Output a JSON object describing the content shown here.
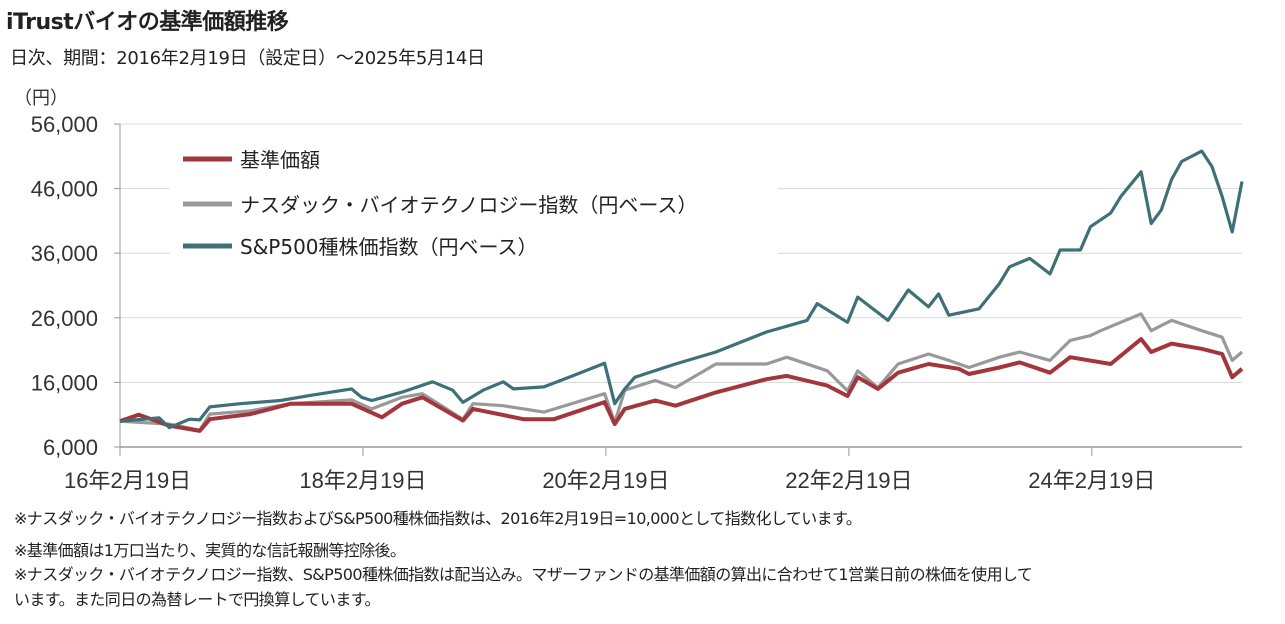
{
  "header": {
    "title": "iTrustバイオの基準価額推移",
    "subtitle": "日次、期間：2016年2月19日（設定日）～2025年5月14日"
  },
  "notes": [
    "※ナスダック・バイオテクノロジー指数およびS&P500種株価指数は、2016年2月19日=10,000として指数化しています。",
    "※基準価額は1万口当たり、実質的な信託報酬等控除後。",
    "※ナスダック・バイオテクノロジー指数、S&P500種株価指数は配当込み。マザーファンドの基準価額の算出に合わせて1営業日前の株価を使用して",
    "います。また同日の為替レートで円換算しています。"
  ],
  "chart_data": {
    "type": "line",
    "title": "iTrustバイオの基準価額推移",
    "ylabel": "（円）",
    "xlabel": "",
    "ylim": [
      6000,
      56000
    ],
    "yticks": [
      "56,000",
      "46,000",
      "36,000",
      "26,000",
      "16,000",
      "6,000"
    ],
    "ytick_values": [
      56000,
      46000,
      36000,
      26000,
      16000,
      6000
    ],
    "xticks": [
      "16年2月19日",
      "18年2月19日",
      "20年2月19日",
      "22年2月19日",
      "24年2月19日"
    ],
    "xtick_dates": [
      "2016-02-19",
      "2018-02-19",
      "2020-02-19",
      "2022-02-19",
      "2024-02-19"
    ],
    "xlim": [
      "2016-02-19",
      "2025-05-14"
    ],
    "grid": "horizontal",
    "legend_position": "top-left",
    "series": [
      {
        "name": "基準価額",
        "color": "#a3363c",
        "x": [
          "2016-02-19",
          "2016-04",
          "2016-07",
          "2016-10",
          "2016-11",
          "2017-03",
          "2017-07",
          "2018-01",
          "2018-04",
          "2018-06",
          "2018-08",
          "2018-12",
          "2019-01",
          "2019-06",
          "2019-09",
          "2020-02",
          "2020-03",
          "2020-04",
          "2020-07",
          "2020-09",
          "2021-01",
          "2021-06",
          "2021-08",
          "2021-12",
          "2022-02",
          "2022-03",
          "2022-05",
          "2022-07",
          "2022-10",
          "2023-01",
          "2023-02",
          "2023-05",
          "2023-07",
          "2023-10",
          "2023-12",
          "2024-04",
          "2024-07",
          "2024-08",
          "2024-10",
          "2025-01",
          "2025-03",
          "2025-04",
          "2025-05-14"
        ],
        "y": [
          10000,
          11000,
          9300,
          8500,
          10300,
          11100,
          12700,
          12700,
          10600,
          12700,
          13700,
          10100,
          11900,
          10300,
          10300,
          12950,
          9550,
          11900,
          13200,
          12400,
          14450,
          16500,
          17000,
          15500,
          13900,
          16800,
          15000,
          17500,
          18850,
          18100,
          17300,
          18300,
          19100,
          17500,
          19900,
          18850,
          22700,
          20700,
          22000,
          21200,
          20400,
          16800,
          18100
        ]
      },
      {
        "name": "ナスダック・バイオテクノロジー指数（円ベース）",
        "color": "#999999",
        "x": [
          "2016-02-19",
          "2016-07",
          "2016-10",
          "2016-11",
          "2017-03",
          "2017-07",
          "2018-01",
          "2018-03",
          "2018-06",
          "2018-08",
          "2018-12",
          "2019-01",
          "2019-04",
          "2019-08",
          "2020-02",
          "2020-03",
          "2020-04",
          "2020-07",
          "2020-09",
          "2021-01",
          "2021-06",
          "2021-08",
          "2021-12",
          "2022-02",
          "2022-03",
          "2022-05",
          "2022-07",
          "2022-10",
          "2022-12",
          "2023-02",
          "2023-05",
          "2023-07",
          "2023-10",
          "2023-12",
          "2024-02",
          "2024-03",
          "2024-07",
          "2024-08",
          "2024-10",
          "2025-01",
          "2025-03",
          "2025-04",
          "2025-05-14"
        ],
        "y": [
          10000,
          9550,
          8600,
          11100,
          11600,
          12700,
          13300,
          11900,
          13700,
          14250,
          10300,
          12700,
          12400,
          11400,
          14250,
          9800,
          14800,
          16300,
          15200,
          18850,
          18850,
          19900,
          17800,
          14700,
          17800,
          15200,
          18850,
          20400,
          19400,
          18300,
          19900,
          20700,
          19400,
          22500,
          23250,
          24000,
          26600,
          24000,
          25600,
          24000,
          23000,
          19400,
          20700
        ]
      },
      {
        "name": "S&P500種株価指数（円ベース）",
        "color": "#3e7078",
        "x": [
          "2016-02-19",
          "2016-06",
          "2016-07",
          "2016-09",
          "2016-10",
          "2016-11",
          "2017-02",
          "2017-06",
          "2017-09",
          "2018-01",
          "2018-02",
          "2018-03",
          "2018-06",
          "2018-09",
          "2018-11",
          "2018-12",
          "2019-02",
          "2019-04",
          "2019-05",
          "2019-08",
          "2019-11",
          "2020-02",
          "2020-03",
          "2020-04",
          "2020-05",
          "2020-09",
          "2021-01",
          "2021-06",
          "2021-10",
          "2021-11",
          "2022-02",
          "2022-03",
          "2022-06",
          "2022-08",
          "2022-10",
          "2022-11",
          "2022-12",
          "2023-03",
          "2023-05",
          "2023-06",
          "2023-08",
          "2023-10",
          "2023-11",
          "2024-01",
          "2024-02",
          "2024-04",
          "2024-05",
          "2024-07",
          "2024-08",
          "2024-09",
          "2024-10",
          "2024-11",
          "2025-01",
          "2025-02",
          "2025-03",
          "2025-04",
          "2025-05-14"
        ],
        "y": [
          10000,
          10500,
          9000,
          10300,
          10200,
          12200,
          12700,
          13200,
          14000,
          15000,
          13700,
          13200,
          14500,
          16100,
          14800,
          12900,
          14800,
          16100,
          15000,
          15300,
          17100,
          18950,
          12700,
          15000,
          16800,
          18850,
          20700,
          23800,
          25600,
          28200,
          25300,
          29200,
          25600,
          30300,
          27700,
          29700,
          26400,
          27400,
          31300,
          33900,
          35200,
          32800,
          36500,
          36500,
          40100,
          42200,
          44800,
          48600,
          40600,
          42700,
          47400,
          50200,
          51800,
          49400,
          44800,
          39300,
          47100
        ]
      }
    ]
  }
}
